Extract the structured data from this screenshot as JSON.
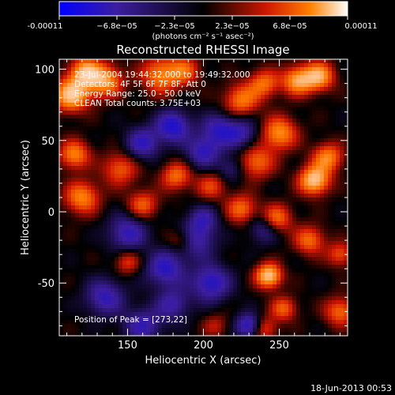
{
  "colorbar": {
    "tick_labels": [
      "-0.00011",
      "−6.8e−05",
      "−2.3e−05",
      "2.3e−05",
      "6.8e−05",
      "0.00011"
    ],
    "unit_label": "(photons cm⁻² s⁻¹ asec⁻²)",
    "range": [
      -0.00011,
      0.00011
    ]
  },
  "footer": {
    "date": "18-Jun-2013 00:53"
  },
  "chart_data": {
    "type": "heatmap",
    "title": "Reconstructed RHESSI Image",
    "xlabel": "Heliocentric X (arcsec)",
    "ylabel": "Heliocentric Y (arcsec)",
    "xlim": [
      105,
      295
    ],
    "ylim": [
      -87,
      107
    ],
    "xticks": [
      150,
      200,
      250
    ],
    "yticks": [
      -50,
      0,
      50,
      100
    ],
    "annotations": [
      "23-Jul-2004 19:44:32.000 to 19:49:32.000",
      "Detectors: 4F 5F 6F 7F 8F, Att 0",
      "Energy Range: 25.0 - 50.0 keV",
      "CLEAN   Total counts: 3.75E+03"
    ],
    "peak_label": "Position of Peak = [273,22]",
    "colormap": [
      "#0000ff",
      "#3c1e9f",
      "#000000",
      "#cc1400",
      "#ff7800",
      "#ffffff"
    ],
    "sources": [
      {
        "x": 113,
        "y": 82,
        "amp": 1.0,
        "sigma": 8
      },
      {
        "x": 122,
        "y": 98,
        "amp": 0.85,
        "sigma": 7
      },
      {
        "x": 135,
        "y": 92,
        "amp": 0.8,
        "sigma": 8
      },
      {
        "x": 172,
        "y": 96,
        "amp": 0.7,
        "sigma": 9
      },
      {
        "x": 188,
        "y": 99,
        "amp": 0.5,
        "sigma": 7
      },
      {
        "x": 225,
        "y": 78,
        "amp": 0.65,
        "sigma": 8
      },
      {
        "x": 240,
        "y": 90,
        "amp": 0.6,
        "sigma": 7
      },
      {
        "x": 262,
        "y": 92,
        "amp": 0.8,
        "sigma": 7
      },
      {
        "x": 276,
        "y": 95,
        "amp": 0.85,
        "sigma": 7
      },
      {
        "x": 250,
        "y": 55,
        "amp": 0.75,
        "sigma": 8
      },
      {
        "x": 273,
        "y": 22,
        "amp": 1.0,
        "sigma": 7
      },
      {
        "x": 282,
        "y": 38,
        "amp": 0.7,
        "sigma": 7
      },
      {
        "x": 235,
        "y": 35,
        "amp": 0.6,
        "sigma": 8
      },
      {
        "x": 115,
        "y": 40,
        "amp": 0.7,
        "sigma": 7
      },
      {
        "x": 120,
        "y": 10,
        "amp": 0.7,
        "sigma": 8
      },
      {
        "x": 145,
        "y": 30,
        "amp": 0.55,
        "sigma": 8
      },
      {
        "x": 160,
        "y": 5,
        "amp": 0.55,
        "sigma": 7
      },
      {
        "x": 182,
        "y": 25,
        "amp": 0.6,
        "sigma": 7
      },
      {
        "x": 205,
        "y": 18,
        "amp": 0.45,
        "sigma": 7
      },
      {
        "x": 225,
        "y": 2,
        "amp": 0.6,
        "sigma": 7
      },
      {
        "x": 248,
        "y": -5,
        "amp": 0.65,
        "sigma": 7
      },
      {
        "x": 270,
        "y": -20,
        "amp": 0.6,
        "sigma": 7
      },
      {
        "x": 243,
        "y": -45,
        "amp": 1.0,
        "sigma": 6
      },
      {
        "x": 290,
        "y": -30,
        "amp": 0.5,
        "sigma": 6
      },
      {
        "x": 253,
        "y": -68,
        "amp": 0.55,
        "sigma": 6
      },
      {
        "x": 290,
        "y": -70,
        "amp": 0.6,
        "sigma": 7
      },
      {
        "x": 240,
        "y": -82,
        "amp": 0.5,
        "sigma": 6
      },
      {
        "x": 150,
        "y": -35,
        "amp": 0.45,
        "sigma": 6
      },
      {
        "x": 185,
        "y": -20,
        "amp": 0.4,
        "sigma": 6
      },
      {
        "x": 208,
        "y": -80,
        "amp": 0.3,
        "sigma": 6
      },
      {
        "x": 180,
        "y": 60,
        "amp": -0.75,
        "sigma": 8
      },
      {
        "x": 160,
        "y": 48,
        "amp": -0.6,
        "sigma": 8
      },
      {
        "x": 210,
        "y": 58,
        "amp": -0.55,
        "sigma": 8
      },
      {
        "x": 200,
        "y": 42,
        "amp": -0.6,
        "sigma": 8
      },
      {
        "x": 225,
        "y": 55,
        "amp": -0.5,
        "sigma": 8
      },
      {
        "x": 150,
        "y": -15,
        "amp": -0.6,
        "sigma": 9
      },
      {
        "x": 175,
        "y": -40,
        "amp": -0.65,
        "sigma": 9
      },
      {
        "x": 205,
        "y": -50,
        "amp": -0.7,
        "sigma": 9
      },
      {
        "x": 195,
        "y": -20,
        "amp": -0.55,
        "sigma": 9
      },
      {
        "x": 135,
        "y": -60,
        "amp": -0.6,
        "sigma": 9
      },
      {
        "x": 160,
        "y": -80,
        "amp": -0.55,
        "sigma": 9
      },
      {
        "x": 240,
        "y": -12,
        "amp": -0.45,
        "sigma": 7
      },
      {
        "x": 230,
        "y": -80,
        "amp": -0.75,
        "sigma": 6
      },
      {
        "x": 180,
        "y": -65,
        "amp": -0.5,
        "sigma": 8
      },
      {
        "x": 200,
        "y": -5,
        "amp": -0.45,
        "sigma": 7
      },
      {
        "x": 218,
        "y": 30,
        "amp": -0.35,
        "sigma": 6
      }
    ]
  }
}
